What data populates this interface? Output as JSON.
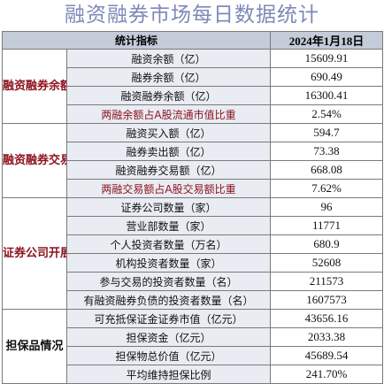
{
  "title": "融资融券市场每日数据统计",
  "header": {
    "indicator": "统计指标",
    "date": "2024年1月18日"
  },
  "sections": [
    {
      "name": "融资融券余额情况",
      "rows": [
        {
          "label": "融资余额（亿）",
          "value": "15609.91"
        },
        {
          "label": "融券余额（亿）",
          "value": "690.49"
        },
        {
          "label": "融资融券余额（亿）",
          "value": "16300.41"
        },
        {
          "label": "两融余额占A股流通市值比重",
          "value": "2.54%"
        }
      ]
    },
    {
      "name": "融资融券交易情况",
      "rows": [
        {
          "label": "融资买入额（亿）",
          "value": "594.7"
        },
        {
          "label": "融券卖出额（亿）",
          "value": "73.38"
        },
        {
          "label": "融资融券交易额（亿）",
          "value": "668.08"
        },
        {
          "label": "两融交易额占A股交易额比重",
          "value": "7.62%"
        }
      ]
    },
    {
      "name": "证券公司开展业务情况",
      "rows": [
        {
          "label": "证券公司数量（家）",
          "value": "96"
        },
        {
          "label": "营业部数量（家）",
          "value": "11771"
        },
        {
          "label": "个人投资者数量（万名）",
          "value": "680.9"
        },
        {
          "label": "机构投资者数量（家）",
          "value": "52608"
        },
        {
          "label": "参与交易的投资者数量（名）",
          "value": "211573"
        },
        {
          "label": "有融资融券负债的投资者数量（名）",
          "value": "1607573"
        }
      ]
    },
    {
      "name": "担保品情况",
      "rows": [
        {
          "label": "可充抵保证金证券市值（亿元）",
          "value": "43656.16"
        },
        {
          "label": "担保资金（亿元）",
          "value": "2033.38"
        },
        {
          "label": "担保物总价值（亿元）",
          "value": "45689.54"
        },
        {
          "label": "平均维持担保比例",
          "value": "241.70%"
        }
      ]
    }
  ]
}
